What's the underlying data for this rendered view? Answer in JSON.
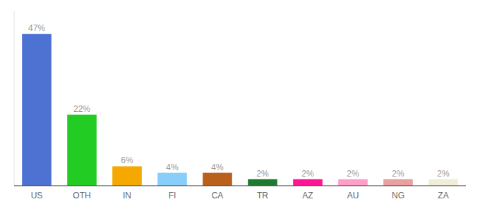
{
  "chart_data": {
    "type": "bar",
    "categories": [
      "US",
      "OTH",
      "IN",
      "FI",
      "CA",
      "TR",
      "AZ",
      "AU",
      "NG",
      "ZA"
    ],
    "values": [
      47,
      22,
      6,
      4,
      4,
      2,
      2,
      2,
      2,
      2
    ],
    "value_labels": [
      "47%",
      "22%",
      "6%",
      "4%",
      "4%",
      "2%",
      "2%",
      "2%",
      "2%",
      "2%"
    ],
    "colors": [
      "#4d72d1",
      "#22cc22",
      "#f5a800",
      "#87cefa",
      "#b8601c",
      "#1e7a2e",
      "#ff1493",
      "#ff9ec8",
      "#e8a0a0",
      "#f0edd8"
    ],
    "ylim": [
      0,
      54
    ],
    "data_labels": true,
    "tick_labels": "x",
    "grid": false
  }
}
